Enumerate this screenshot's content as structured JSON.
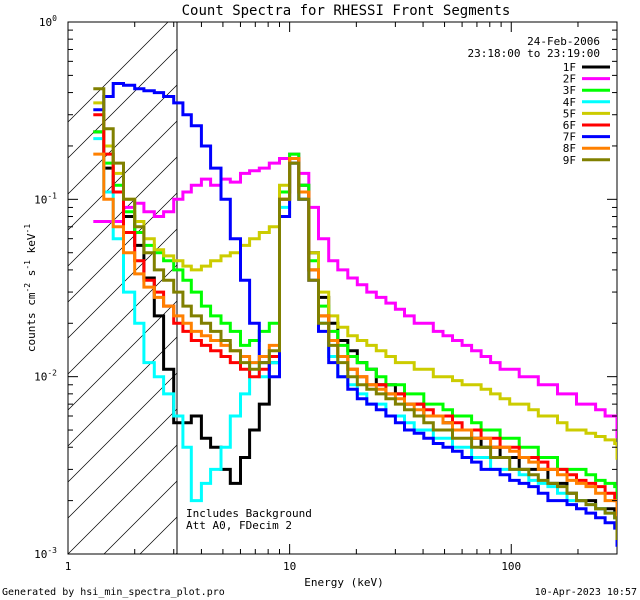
{
  "chart_data": {
    "type": "line",
    "title": "Count Spectra for RHESSI Front Segments",
    "xlabel": "Energy (keV)",
    "ylabel": "counts cm",
    "ylabel_sup1": "-2",
    "ylabel_mid": " s",
    "ylabel_sup2": "-1",
    "ylabel_end": " keV",
    "ylabel_sup3": "-1",
    "x_scale": "log",
    "y_scale": "log",
    "xlim": [
      1,
      300
    ],
    "ylim": [
      0.001,
      1
    ],
    "x_ticks": [
      {
        "value": 10,
        "label": "10"
      },
      {
        "value": 100,
        "label": "100"
      },
      {
        "value": 1,
        "label": "1"
      }
    ],
    "y_ticks": [
      {
        "value": 1,
        "base": "10",
        "exp": "0"
      },
      {
        "value": 0.1,
        "base": "10",
        "exp": "-1"
      },
      {
        "value": 0.01,
        "base": "10",
        "exp": "-2"
      },
      {
        "value": 0.001,
        "base": "10",
        "exp": "-3"
      }
    ],
    "hatch_region": [
      1,
      3
    ],
    "date": "24-Feb-2006",
    "time_range": "23:18:00 to 23:19:00",
    "annotation_line1": "Includes Background",
    "annotation_line2": "Att A0, FDecim 2",
    "footer_left": "Generated by hsi_min_spectra_plot.pro",
    "footer_right": "10-Apr-2023 10:57",
    "legend_position": "top-right",
    "series": [
      {
        "name": "1F",
        "color": "#000000",
        "values": [
          0.24,
          0.15,
          0.11,
          0.08,
          0.055,
          0.036,
          0.022,
          0.011,
          0.0055,
          0.0055,
          0.006,
          0.0045,
          0.004,
          0.003,
          0.0025,
          0.0035,
          0.005,
          0.007,
          0.012,
          0.11,
          0.17,
          0.12,
          0.05,
          0.028,
          0.02,
          0.016,
          0.014,
          0.012,
          0.011,
          0.009,
          0.009,
          0.008,
          0.007,
          0.007,
          0.006,
          0.006,
          0.0055,
          0.005,
          0.005,
          0.0045,
          0.004,
          0.004,
          0.0035,
          0.0035,
          0.003,
          0.003,
          0.003,
          0.0025,
          0.0025,
          0.0022,
          0.002,
          0.002,
          0.0018,
          0.0018,
          0.0016,
          0.0015,
          0.0014,
          0.0013,
          0.0012,
          0.0011
        ]
      },
      {
        "name": "2F",
        "color": "#ff00ff",
        "values": [
          0.075,
          0.075,
          0.075,
          0.09,
          0.095,
          0.085,
          0.08,
          0.085,
          0.1,
          0.11,
          0.12,
          0.13,
          0.12,
          0.13,
          0.125,
          0.14,
          0.145,
          0.15,
          0.16,
          0.17,
          0.18,
          0.14,
          0.09,
          0.06,
          0.045,
          0.04,
          0.036,
          0.033,
          0.03,
          0.028,
          0.026,
          0.024,
          0.022,
          0.02,
          0.02,
          0.018,
          0.017,
          0.016,
          0.015,
          0.014,
          0.013,
          0.012,
          0.011,
          0.011,
          0.01,
          0.01,
          0.009,
          0.009,
          0.008,
          0.008,
          0.007,
          0.007,
          0.0065,
          0.006,
          0.006,
          0.0055,
          0.005,
          0.005,
          0.0045,
          0.004
        ]
      },
      {
        "name": "3F",
        "color": "#00ff00",
        "values": [
          0.24,
          0.16,
          0.12,
          0.085,
          0.065,
          0.055,
          0.05,
          0.045,
          0.04,
          0.035,
          0.03,
          0.025,
          0.022,
          0.02,
          0.018,
          0.015,
          0.016,
          0.018,
          0.02,
          0.11,
          0.18,
          0.12,
          0.045,
          0.025,
          0.018,
          0.015,
          0.013,
          0.012,
          0.011,
          0.01,
          0.009,
          0.009,
          0.008,
          0.008,
          0.007,
          0.007,
          0.0065,
          0.006,
          0.006,
          0.0055,
          0.005,
          0.005,
          0.0045,
          0.0045,
          0.004,
          0.004,
          0.0035,
          0.0035,
          0.003,
          0.003,
          0.003,
          0.0028,
          0.0026,
          0.0025,
          0.0024,
          0.0022,
          0.002,
          0.0019,
          0.0018,
          0.0017
        ]
      },
      {
        "name": "4F",
        "color": "#00ffff",
        "values": [
          0.22,
          0.11,
          0.06,
          0.03,
          0.02,
          0.012,
          0.01,
          0.008,
          0.006,
          0.004,
          0.002,
          0.0025,
          0.003,
          0.004,
          0.006,
          0.008,
          0.012,
          0.01,
          0.012,
          0.09,
          0.16,
          0.1,
          0.04,
          0.02,
          0.013,
          0.01,
          0.009,
          0.008,
          0.007,
          0.007,
          0.006,
          0.006,
          0.0055,
          0.005,
          0.005,
          0.0045,
          0.0045,
          0.004,
          0.004,
          0.0035,
          0.0035,
          0.003,
          0.003,
          0.003,
          0.0028,
          0.0026,
          0.0025,
          0.0024,
          0.0022,
          0.002,
          0.002,
          0.0019,
          0.0018,
          0.0017,
          0.0016,
          0.0015,
          0.0014,
          0.0013,
          0.0012,
          0.0011
        ]
      },
      {
        "name": "5F",
        "color": "#cccc00",
        "values": [
          0.35,
          0.2,
          0.14,
          0.1,
          0.075,
          0.06,
          0.052,
          0.048,
          0.045,
          0.042,
          0.04,
          0.042,
          0.045,
          0.048,
          0.05,
          0.055,
          0.06,
          0.065,
          0.07,
          0.12,
          0.16,
          0.11,
          0.05,
          0.03,
          0.022,
          0.019,
          0.017,
          0.016,
          0.015,
          0.014,
          0.013,
          0.012,
          0.012,
          0.011,
          0.011,
          0.01,
          0.01,
          0.0095,
          0.009,
          0.009,
          0.0085,
          0.008,
          0.0075,
          0.007,
          0.007,
          0.0065,
          0.006,
          0.006,
          0.0055,
          0.005,
          0.005,
          0.0048,
          0.0046,
          0.0044,
          0.0042,
          0.004,
          0.0038,
          0.0036,
          0.0034,
          0.0032
        ]
      },
      {
        "name": "6F",
        "color": "#ff0000",
        "values": [
          0.3,
          0.18,
          0.11,
          0.065,
          0.045,
          0.035,
          0.03,
          0.025,
          0.02,
          0.018,
          0.016,
          0.015,
          0.014,
          0.013,
          0.012,
          0.011,
          0.01,
          0.011,
          0.013,
          0.1,
          0.17,
          0.11,
          0.04,
          0.022,
          0.016,
          0.013,
          0.011,
          0.01,
          0.009,
          0.009,
          0.008,
          0.008,
          0.007,
          0.007,
          0.0065,
          0.006,
          0.006,
          0.0055,
          0.005,
          0.005,
          0.0045,
          0.0045,
          0.004,
          0.004,
          0.0035,
          0.0035,
          0.0033,
          0.003,
          0.003,
          0.0028,
          0.0026,
          0.0025,
          0.0024,
          0.0022,
          0.002,
          0.0019,
          0.0018,
          0.0017,
          0.0016,
          0.0015
        ]
      },
      {
        "name": "7F",
        "color": "#0000ff",
        "values": [
          0.32,
          0.38,
          0.45,
          0.44,
          0.42,
          0.41,
          0.4,
          0.38,
          0.35,
          0.3,
          0.26,
          0.2,
          0.15,
          0.1,
          0.06,
          0.035,
          0.02,
          0.012,
          0.01,
          0.08,
          0.16,
          0.1,
          0.035,
          0.018,
          0.012,
          0.01,
          0.0085,
          0.0075,
          0.007,
          0.0065,
          0.006,
          0.0055,
          0.005,
          0.0048,
          0.0045,
          0.0042,
          0.004,
          0.0038,
          0.0035,
          0.0033,
          0.003,
          0.003,
          0.0028,
          0.0026,
          0.0025,
          0.0024,
          0.0022,
          0.002,
          0.002,
          0.0019,
          0.0018,
          0.0017,
          0.0016,
          0.0015,
          0.0014,
          0.0013,
          0.0012,
          0.0012,
          0.0011,
          0.001
        ]
      },
      {
        "name": "8F",
        "color": "#ff8000",
        "values": [
          0.18,
          0.1,
          0.07,
          0.05,
          0.038,
          0.032,
          0.028,
          0.025,
          0.022,
          0.02,
          0.018,
          0.017,
          0.016,
          0.015,
          0.014,
          0.013,
          0.012,
          0.013,
          0.015,
          0.1,
          0.17,
          0.11,
          0.04,
          0.022,
          0.016,
          0.013,
          0.011,
          0.01,
          0.009,
          0.0085,
          0.008,
          0.0075,
          0.007,
          0.0065,
          0.006,
          0.006,
          0.0055,
          0.005,
          0.005,
          0.0045,
          0.0045,
          0.004,
          0.004,
          0.0038,
          0.0035,
          0.0033,
          0.003,
          0.003,
          0.0028,
          0.0026,
          0.0025,
          0.0024,
          0.0022,
          0.002,
          0.002,
          0.0019,
          0.0018,
          0.0017,
          0.0016,
          0.0015
        ]
      },
      {
        "name": "9F",
        "color": "#808000",
        "values": [
          0.42,
          0.25,
          0.16,
          0.1,
          0.07,
          0.05,
          0.04,
          0.035,
          0.03,
          0.025,
          0.022,
          0.02,
          0.018,
          0.016,
          0.014,
          0.012,
          0.011,
          0.012,
          0.014,
          0.1,
          0.16,
          0.1,
          0.035,
          0.02,
          0.015,
          0.012,
          0.01,
          0.009,
          0.0085,
          0.008,
          0.0075,
          0.007,
          0.0065,
          0.006,
          0.0055,
          0.005,
          0.005,
          0.0045,
          0.0045,
          0.004,
          0.004,
          0.0035,
          0.0035,
          0.003,
          0.003,
          0.0028,
          0.0026,
          0.0025,
          0.0024,
          0.0022,
          0.002,
          0.0019,
          0.0018,
          0.0017,
          0.0016,
          0.0015,
          0.0014,
          0.0013,
          0.0012,
          0.0011
        ]
      }
    ],
    "energy_bins": [
      1.3,
      1.45,
      1.6,
      1.78,
      2.0,
      2.2,
      2.45,
      2.7,
      3.0,
      3.3,
      3.6,
      4.0,
      4.4,
      4.9,
      5.4,
      6.0,
      6.6,
      7.3,
      8.1,
      9.0,
      10.0,
      11.0,
      12.2,
      13.5,
      15.0,
      16.5,
      18.3,
      20.2,
      22.3,
      24.6,
      27.2,
      30.0,
      33.0,
      36.5,
      40.3,
      44.5,
      49.2,
      54.3,
      60.0,
      66.2,
      73.1,
      80.7,
      89.1,
      98.4,
      108.6,
      120.0,
      132.5,
      146.3,
      161.6,
      178.4,
      197.0,
      217.5,
      240.2,
      265.2,
      292.9,
      300.0,
      300.0,
      300.0,
      300.0,
      300.0
    ]
  }
}
